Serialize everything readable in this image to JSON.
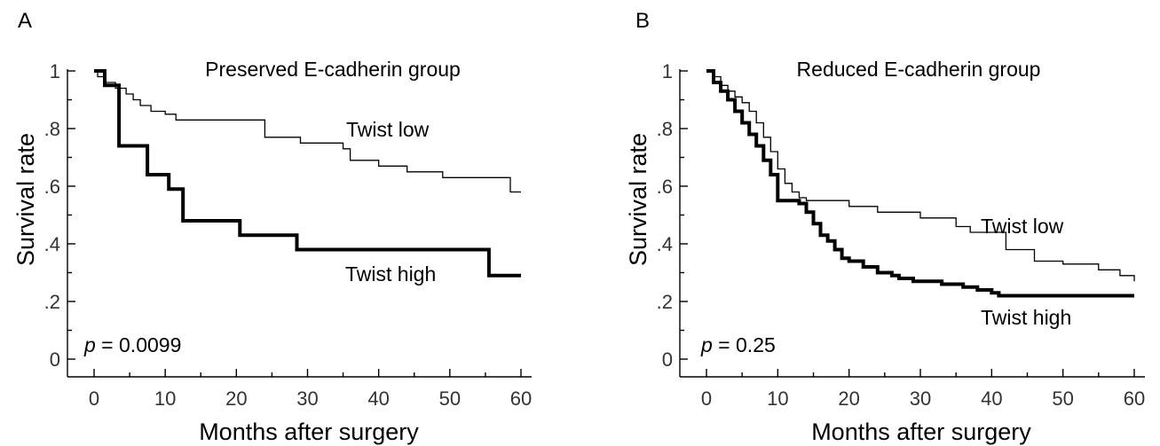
{
  "chart_data": [
    {
      "type": "line",
      "step": true,
      "panel_label": "A",
      "title": "Preserved E-cadherin group",
      "xlabel": "Months after surgery",
      "ylabel": "Survival rate",
      "xlim": [
        0,
        60
      ],
      "ylim": [
        0,
        1
      ],
      "xticks": [
        0,
        10,
        20,
        30,
        40,
        50,
        60
      ],
      "xtick_labels": [
        "0",
        "10",
        "20",
        "30",
        "40",
        "50",
        "60"
      ],
      "yticks": [
        0,
        0.2,
        0.4,
        0.6,
        0.8,
        1
      ],
      "ytick_labels": [
        "0",
        ".2",
        ".4",
        ".6",
        ".8",
        "1"
      ],
      "annotation": {
        "italic": "p",
        "text": " = 0.0099"
      },
      "series": [
        {
          "name": "Twist low",
          "color": "#000000",
          "line_width": 1.3,
          "x": [
            0,
            0.5,
            1.5,
            3,
            4.5,
            5.5,
            6.5,
            8,
            10,
            11.5,
            24,
            29,
            35,
            36,
            40,
            44,
            49,
            58.5,
            60
          ],
          "y": [
            1.0,
            0.98,
            0.96,
            0.94,
            0.92,
            0.9,
            0.88,
            0.86,
            0.85,
            0.83,
            0.77,
            0.75,
            0.73,
            0.69,
            0.67,
            0.65,
            0.63,
            0.58,
            0.58
          ]
        },
        {
          "name": "Twist high",
          "color": "#000000",
          "line_width": 4,
          "x": [
            0,
            1.5,
            3.5,
            7.5,
            10.5,
            12.5,
            20.5,
            28.5,
            55.5,
            60
          ],
          "y": [
            1.0,
            0.95,
            0.74,
            0.64,
            0.59,
            0.48,
            0.43,
            0.38,
            0.29,
            0.29
          ]
        }
      ]
    },
    {
      "type": "line",
      "step": true,
      "panel_label": "B",
      "title": "Reduced E-cadherin group",
      "xlabel": "Months after surgery",
      "ylabel": "Survival rate",
      "xlim": [
        0,
        60
      ],
      "ylim": [
        0,
        1
      ],
      "xticks": [
        0,
        10,
        20,
        30,
        40,
        50,
        60
      ],
      "xtick_labels": [
        "0",
        "10",
        "20",
        "30",
        "40",
        "50",
        "60"
      ],
      "yticks": [
        0,
        0.2,
        0.4,
        0.6,
        0.8,
        1
      ],
      "ytick_labels": [
        "0",
        ".2",
        ".4",
        ".6",
        ".8",
        "1"
      ],
      "annotation": {
        "italic": "p",
        "text": " = 0.25"
      },
      "series": [
        {
          "name": "Twist low",
          "color": "#000000",
          "line_width": 1.3,
          "x": [
            0,
            1,
            2,
            3,
            4,
            5,
            6,
            7,
            8,
            9,
            10,
            11,
            12,
            13,
            14,
            20,
            24,
            30,
            35,
            37,
            42,
            46,
            50,
            55,
            58,
            60
          ],
          "y": [
            1.0,
            0.98,
            0.95,
            0.93,
            0.91,
            0.89,
            0.86,
            0.82,
            0.77,
            0.72,
            0.66,
            0.61,
            0.58,
            0.56,
            0.55,
            0.53,
            0.51,
            0.49,
            0.46,
            0.44,
            0.38,
            0.34,
            0.33,
            0.31,
            0.29,
            0.27
          ]
        },
        {
          "name": "Twist high",
          "color": "#000000",
          "line_width": 4,
          "x": [
            0,
            1,
            2,
            3,
            4,
            5,
            6,
            7,
            8,
            9,
            10,
            13,
            14,
            15,
            16,
            17,
            18,
            19,
            20,
            22,
            24,
            26,
            27,
            29,
            33,
            36,
            38,
            40,
            41,
            60
          ],
          "y": [
            1.0,
            0.96,
            0.93,
            0.9,
            0.86,
            0.82,
            0.78,
            0.74,
            0.69,
            0.64,
            0.55,
            0.54,
            0.51,
            0.47,
            0.43,
            0.41,
            0.38,
            0.35,
            0.34,
            0.32,
            0.3,
            0.29,
            0.28,
            0.27,
            0.26,
            0.25,
            0.24,
            0.23,
            0.22,
            0.22
          ]
        }
      ]
    }
  ]
}
